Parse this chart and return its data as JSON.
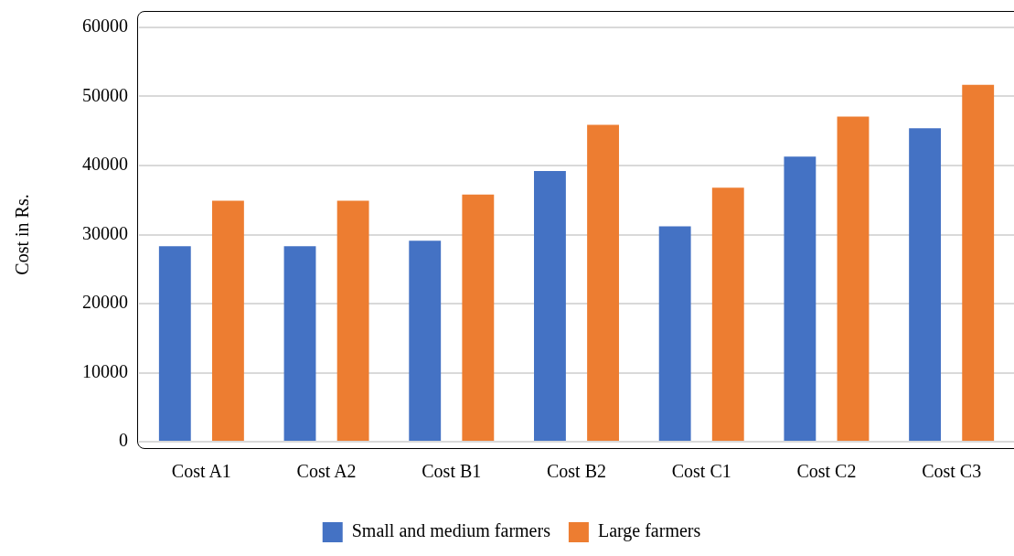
{
  "chart_data": {
    "type": "bar",
    "ylabel": "Cost in Rs.",
    "categories": [
      "Cost A1",
      "Cost A2",
      "Cost B1",
      "Cost B2",
      "Cost C1",
      "Cost C2",
      "Cost C3"
    ],
    "series": [
      {
        "name": "Small and medium farmers",
        "color": "#4472c4",
        "values": [
          28300,
          28300,
          29100,
          39200,
          31200,
          41300,
          45400
        ]
      },
      {
        "name": "Large farmers",
        "color": "#ed7d31",
        "values": [
          34900,
          34900,
          35800,
          45900,
          36800,
          47100,
          51700
        ]
      }
    ],
    "ylim": [
      0,
      60000
    ],
    "yticks": [
      0,
      10000,
      20000,
      30000,
      40000,
      50000,
      60000
    ],
    "grid": "y",
    "legend": "bottom"
  }
}
